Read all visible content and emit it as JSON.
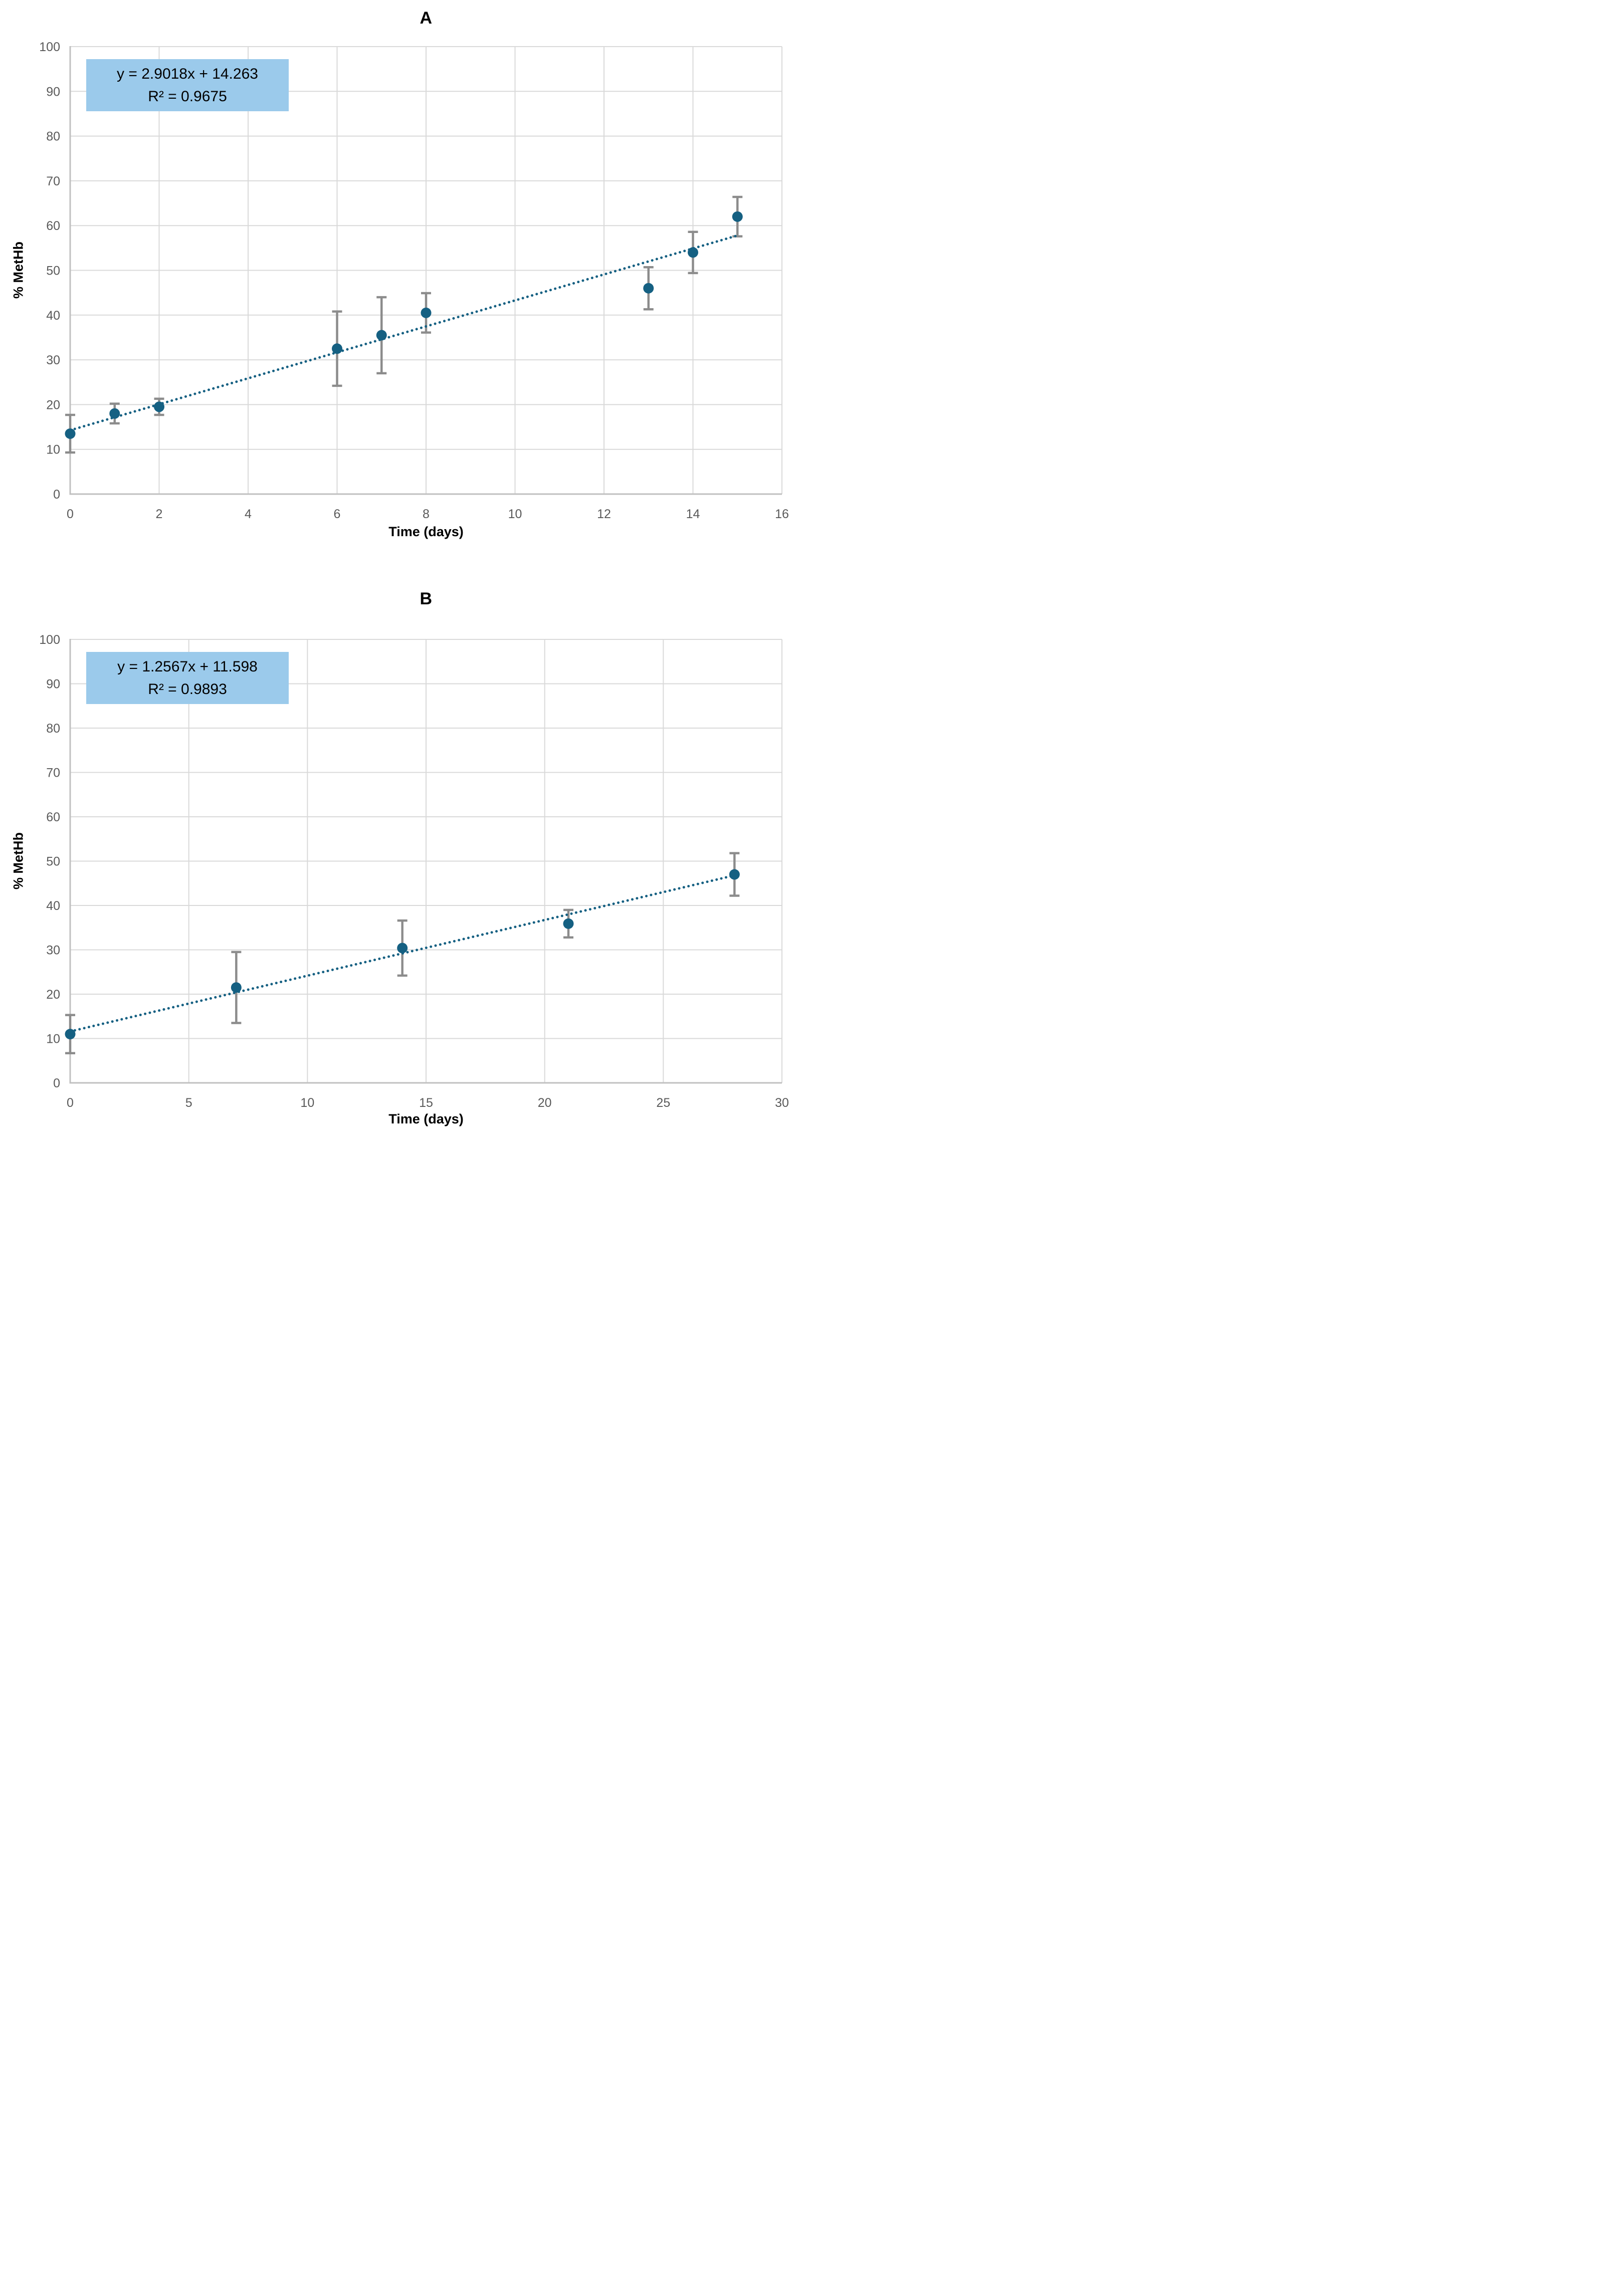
{
  "colors": {
    "accent_teal": "#156082",
    "error_bar_gray": "#8C8C8C",
    "gridline_gray": "#D9D9D9",
    "axis_line_gray": "#C0C0C0",
    "tick_label_gray": "#595959",
    "equation_box_blue": "#9BCAEB",
    "text_black": "#000000",
    "background_white": "#FFFFFF"
  },
  "chart_data": [
    {
      "id": "A",
      "type": "scatter",
      "title": "A",
      "xlabel": "Time (days)",
      "ylabel": "% MetHb",
      "xlim": [
        0,
        16
      ],
      "ylim": [
        0,
        100
      ],
      "xticks": [
        0,
        2,
        4,
        6,
        8,
        10,
        12,
        14,
        16
      ],
      "yticks": [
        0,
        10,
        20,
        30,
        40,
        50,
        60,
        70,
        80,
        90,
        100
      ],
      "grid": true,
      "legend": "none",
      "equation_label": "y = 2.9018x + 14.263",
      "r2_label": "R² = 0.9675",
      "trendline": {
        "slope": 2.9018,
        "intercept": 14.263,
        "x_start": 0,
        "x_end": 15,
        "style": "dotted"
      },
      "points": [
        {
          "x": 0,
          "y": 13.5,
          "err": 4.2
        },
        {
          "x": 1,
          "y": 18.0,
          "err": 2.2
        },
        {
          "x": 2,
          "y": 19.5,
          "err": 1.8
        },
        {
          "x": 6,
          "y": 32.5,
          "err": 8.3
        },
        {
          "x": 7,
          "y": 35.5,
          "err": 8.5
        },
        {
          "x": 8,
          "y": 40.5,
          "err": 4.4
        },
        {
          "x": 13,
          "y": 46.0,
          "err": 4.7
        },
        {
          "x": 14,
          "y": 54.0,
          "err": 4.6
        },
        {
          "x": 15,
          "y": 62.0,
          "err": 4.4
        }
      ]
    },
    {
      "id": "B",
      "type": "scatter",
      "title": "B",
      "xlabel": "Time (days)",
      "ylabel": "% MetHb",
      "xlim": [
        0,
        30
      ],
      "ylim": [
        0,
        100
      ],
      "xticks": [
        0,
        5,
        10,
        15,
        20,
        25,
        30
      ],
      "yticks": [
        0,
        10,
        20,
        30,
        40,
        50,
        60,
        70,
        80,
        90,
        100
      ],
      "grid": true,
      "legend": "none",
      "equation_label": "y = 1.2567x + 11.598",
      "r2_label": "R² = 0.9893",
      "trendline": {
        "slope": 1.2567,
        "intercept": 11.598,
        "x_start": 0,
        "x_end": 28,
        "style": "dotted"
      },
      "points": [
        {
          "x": 0,
          "y": 11.0,
          "err": 4.3
        },
        {
          "x": 7,
          "y": 21.5,
          "err": 8.0
        },
        {
          "x": 14,
          "y": 30.4,
          "err": 6.2
        },
        {
          "x": 21,
          "y": 35.9,
          "err": 3.1
        },
        {
          "x": 28,
          "y": 47.0,
          "err": 4.8
        }
      ]
    }
  ]
}
